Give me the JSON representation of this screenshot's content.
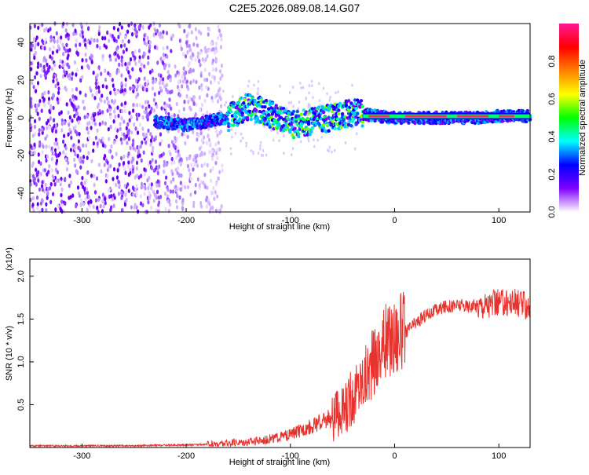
{
  "figure": {
    "title": "C2E5.2026.089.08.14.G07"
  },
  "chart_data": [
    {
      "type": "heatmap",
      "xlabel": "Height of straight line (km)",
      "ylabel": "Frequency (Hz)",
      "xlim": [
        -350,
        130
      ],
      "ylim": [
        -50,
        50
      ],
      "xticks": [
        -300,
        -200,
        -100,
        0,
        100
      ],
      "yticks": [
        -40,
        -20,
        0,
        20,
        40
      ],
      "colorbar": {
        "label": "Normalized spectral amplitude",
        "range": [
          0,
          1
        ],
        "ticks": [
          "0.0",
          "0.2",
          "0.4",
          "0.6",
          "0.8"
        ],
        "colors": [
          "#ffffff",
          "#7f00ff",
          "#0000ff",
          "#00ffff",
          "#00ff00",
          "#ffff00",
          "#ff8000",
          "#ff0000",
          "#ff1493"
        ]
      },
      "ridge": [
        {
          "x": -230,
          "y": -2
        },
        {
          "x": -200,
          "y": -4
        },
        {
          "x": -160,
          "y": 0
        },
        {
          "x": -140,
          "y": 6
        },
        {
          "x": -120,
          "y": 2
        },
        {
          "x": -100,
          "y": -4
        },
        {
          "x": -80,
          "y": -2
        },
        {
          "x": -60,
          "y": 0
        },
        {
          "x": -40,
          "y": 3
        },
        {
          "x": -20,
          "y": 1
        },
        {
          "x": 0,
          "y": 0
        },
        {
          "x": 40,
          "y": 0
        },
        {
          "x": 80,
          "y": 0
        },
        {
          "x": 100,
          "y": 1
        },
        {
          "x": 130,
          "y": 1
        }
      ]
    },
    {
      "type": "line",
      "xlabel": "Height of straight line (km)",
      "ylabel": "SNR (10 * v/v)",
      "yscale_label": "(x10⁴)",
      "xlim": [
        -350,
        130
      ],
      "ylim": [
        0,
        2.2
      ],
      "xticks": [
        -300,
        -200,
        -100,
        0,
        100
      ],
      "yticks": [
        "0.5",
        "1.0",
        "1.5",
        "2.0"
      ],
      "color": "#e8322d",
      "series": [
        {
          "x": [
            -350,
            -300,
            -250,
            -200,
            -170,
            -150,
            -130,
            -110,
            -100,
            -90,
            -80,
            -70,
            -60,
            -50,
            -40,
            -30,
            -20,
            -10,
            0,
            10,
            20,
            30,
            40,
            50,
            60,
            70,
            80,
            90,
            100,
            110,
            120,
            130
          ],
          "y": [
            0.02,
            0.02,
            0.02,
            0.03,
            0.04,
            0.06,
            0.08,
            0.12,
            0.15,
            0.2,
            0.25,
            0.3,
            0.35,
            0.4,
            0.6,
            0.8,
            1.0,
            1.2,
            1.3,
            1.35,
            1.45,
            1.55,
            1.6,
            1.65,
            1.66,
            1.65,
            1.66,
            1.67,
            1.68,
            1.7,
            1.68,
            1.65
          ]
        }
      ]
    }
  ]
}
